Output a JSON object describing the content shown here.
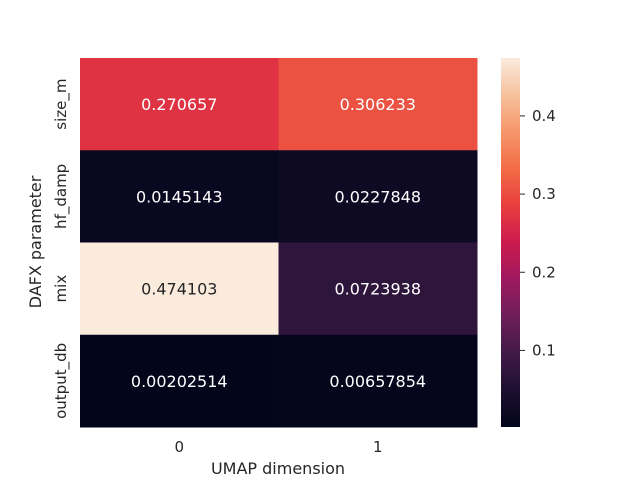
{
  "chart_data": {
    "type": "heatmap",
    "title": "",
    "xlabel": "UMAP dimension",
    "ylabel": "DAFX parameter",
    "x_categories": [
      "0",
      "1"
    ],
    "y_categories": [
      "size_m",
      "hf_damp",
      "mix",
      "output_db"
    ],
    "values": [
      [
        0.270657,
        0.306233
      ],
      [
        0.0145143,
        0.0227848
      ],
      [
        0.474103,
        0.0723938
      ],
      [
        0.00202514,
        0.00657854
      ]
    ],
    "cell_labels": [
      [
        "0.270657",
        "0.306233"
      ],
      [
        "0.0145143",
        "0.0227848"
      ],
      [
        "0.474103",
        "0.0723938"
      ],
      [
        "0.00202514",
        "0.00657854"
      ]
    ],
    "colorbar": {
      "colormap": "rocket",
      "vmin": 0.00202514,
      "vmax": 0.474103,
      "ticks": [
        "0.1",
        "0.2",
        "0.3",
        "0.4"
      ]
    }
  }
}
